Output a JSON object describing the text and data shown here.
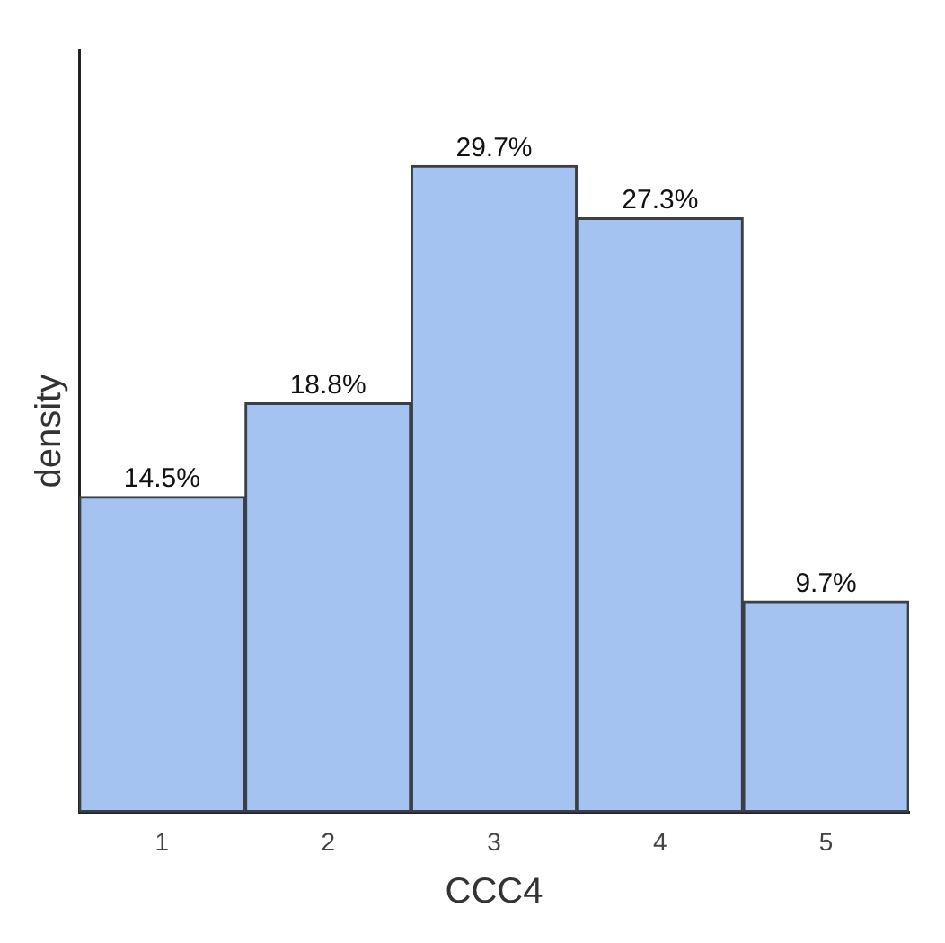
{
  "chart_data": {
    "type": "bar",
    "xlabel": "CCC4",
    "ylabel": "density",
    "categories": [
      "1",
      "2",
      "3",
      "4",
      "5"
    ],
    "values": [
      14.5,
      18.8,
      29.7,
      27.3,
      9.7
    ],
    "value_labels": [
      "14.5%",
      "18.8%",
      "29.7%",
      "27.3%",
      "9.7%"
    ],
    "color": "#a4c3f0",
    "grid": false,
    "legend": false,
    "tick_labels": "x"
  }
}
